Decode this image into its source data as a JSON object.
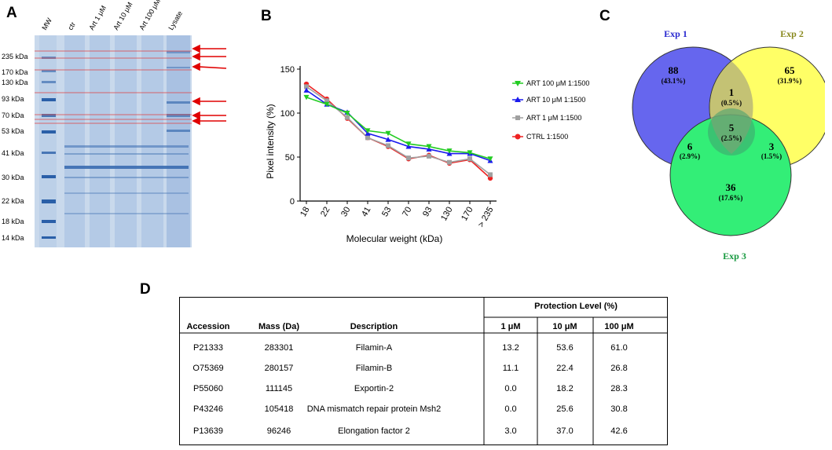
{
  "panels": {
    "a": "A",
    "b": "B",
    "c": "C",
    "d": "D"
  },
  "gel": {
    "lanes": [
      "MW",
      "ctr",
      "Art 1 μM",
      "Art 10 μM",
      "Art 100 μM",
      "Lysate"
    ],
    "mw_markers": [
      "235 kDa",
      "170 kDa",
      "130 kDa",
      "93 kDa",
      "70 kDa",
      "53 kDa",
      "41 kDa",
      "30 kDa",
      "22 kDa",
      "18 kDa",
      "14 kDa"
    ],
    "arrow_color": "#e00000"
  },
  "chart_data": {
    "type": "line",
    "categories": [
      "18",
      "22",
      "30",
      "41",
      "53",
      "70",
      "93",
      "130",
      "170",
      "> 235"
    ],
    "xlabel": "Molecular weight (kDa)",
    "ylabel": "Pixel intensity (%)",
    "ylim": [
      0,
      150
    ],
    "yticks": [
      "0",
      "50",
      "100",
      "150"
    ],
    "series": [
      {
        "name": "ART 100 μM 1:1500",
        "color": "#22cc22",
        "marker": "triangle-down",
        "values": [
          118,
          110,
          100,
          80,
          77,
          65,
          62,
          57,
          55,
          48
        ]
      },
      {
        "name": "ART 10 μM 1:1500",
        "color": "#1a1aee",
        "marker": "triangle-up",
        "values": [
          126,
          110,
          101,
          77,
          70,
          62,
          59,
          54,
          54,
          46
        ]
      },
      {
        "name": "ART 1 μM 1:1500",
        "color": "#a0a0a0",
        "marker": "square",
        "values": [
          130,
          114,
          95,
          72,
          63,
          49,
          51,
          44,
          48,
          30
        ]
      },
      {
        "name": "CTRL 1:1500",
        "color": "#ee2222",
        "marker": "circle",
        "values": [
          133,
          116,
          94,
          72,
          62,
          48,
          52,
          43,
          47,
          26
        ]
      }
    ]
  },
  "venn": {
    "exp1": "Exp 1",
    "exp2": "Exp 2",
    "exp3": "Exp 3",
    "only1": {
      "n": "88",
      "p": "(43.1%)"
    },
    "only2": {
      "n": "65",
      "p": "(31.9%)"
    },
    "only3": {
      "n": "36",
      "p": "(17.6%)"
    },
    "ab": {
      "n": "1",
      "p": "(0.5%)"
    },
    "ac": {
      "n": "6",
      "p": "(2.9%)"
    },
    "bc": {
      "n": "3",
      "p": "(1.5%)"
    },
    "abc": {
      "n": "5",
      "p": "(2.5%)"
    },
    "colors": {
      "exp1": "#6666ee",
      "exp2": "#ffff66",
      "exp3": "#33ee77"
    }
  },
  "table": {
    "group_header": "Protection Level (%)",
    "headers": [
      "Accession",
      "Mass  (Da)",
      "Description",
      "1 μM",
      "10 μM",
      "100 μM"
    ],
    "rows": [
      [
        "P21333",
        "283301",
        "Filamin-A",
        "13.2",
        "53.6",
        "61.0"
      ],
      [
        "O75369",
        "280157",
        "Filamin-B",
        "11.1",
        "22.4",
        "26.8"
      ],
      [
        "P55060",
        "111145",
        "Exportin-2",
        "0.0",
        "18.2",
        "28.3"
      ],
      [
        "P43246",
        "105418",
        "DNA mismatch repair protein Msh2",
        "0.0",
        "25.6",
        "30.8"
      ],
      [
        "P13639",
        "96246",
        "Elongation factor 2",
        "3.0",
        "37.0",
        "42.6"
      ]
    ]
  }
}
